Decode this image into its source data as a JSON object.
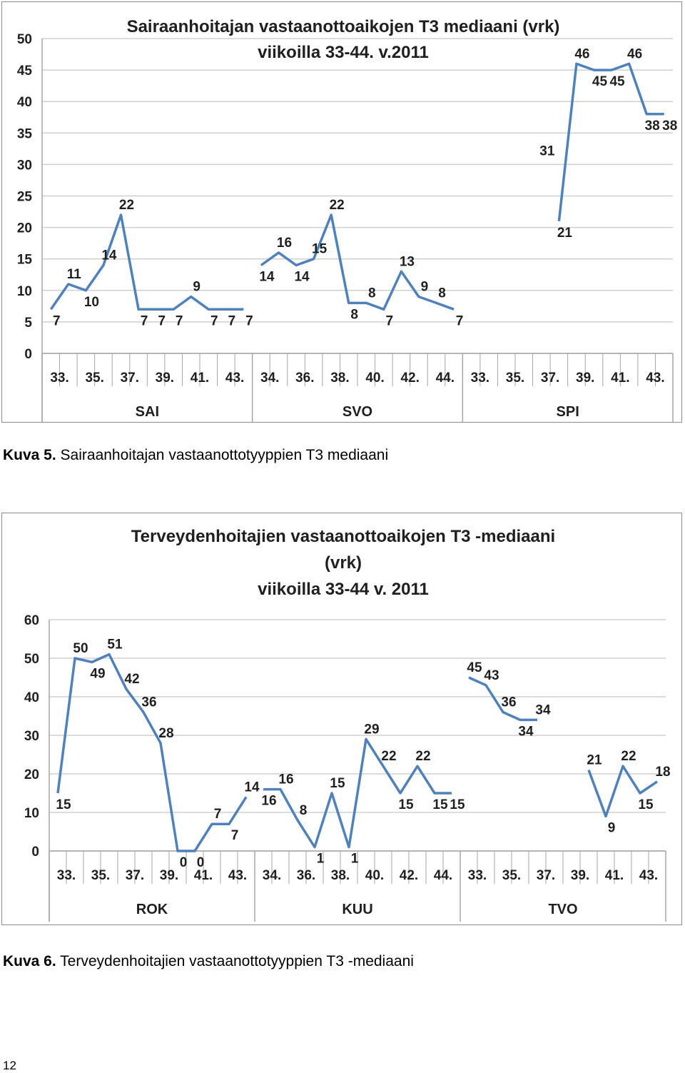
{
  "captions": [
    {
      "label": "Kuva 5.",
      "text": "Sairaanhoitajan  vastaanottotyyppien  T3 mediaani"
    },
    {
      "label": "Kuva 6.",
      "text": "Terveydenhoitajien vastaanottotyyppien T3 -mediaani"
    }
  ],
  "page_number": "12",
  "colors": {
    "line": "#4f81bd",
    "grid": "#d0d0d0",
    "axis": "#a6a6a6"
  },
  "chart_data": [
    {
      "type": "line",
      "title_lines": [
        "Sairaanhoitajan vastaanottoaikojen T3 mediaani  (vrk)",
        "viikoilla 33-44. v.2011"
      ],
      "ylim": [
        0,
        50
      ],
      "yticks": [
        0,
        5,
        10,
        15,
        20,
        25,
        30,
        35,
        40,
        45,
        50
      ],
      "grid": true,
      "groups": [
        {
          "name": "SAI",
          "ticks": [
            "33.",
            "35.",
            "37.",
            "39.",
            "41.",
            "43."
          ],
          "values": [
            7,
            11,
            10,
            14,
            22,
            7,
            7,
            7,
            9,
            7,
            7,
            7
          ]
        },
        {
          "name": "SVO",
          "ticks": [
            "34.",
            "36.",
            "38.",
            "40.",
            "42.",
            "44."
          ],
          "values": [
            14,
            16,
            14,
            15,
            22,
            8,
            8,
            7,
            13,
            9,
            8,
            7
          ]
        },
        {
          "name": "SPI",
          "ticks": [
            "33.",
            "35.",
            "37.",
            "39.",
            "41.",
            "43."
          ],
          "values": [
            21,
            46,
            45,
            45,
            46,
            38,
            38
          ],
          "start_index": 5,
          "extra_labels": [
            {
              "index": 4,
              "text": "31"
            }
          ]
        }
      ]
    },
    {
      "type": "line",
      "title_lines": [
        "Terveydenhoitajien vastaanottoaikojen T3 -mediaani",
        "(vrk)",
        "viikoilla 33-44 v. 2011"
      ],
      "ylim": [
        0,
        60
      ],
      "yticks": [
        0,
        10,
        20,
        30,
        40,
        50,
        60
      ],
      "grid": true,
      "groups": [
        {
          "name": "ROK",
          "ticks": [
            "33.",
            "35.",
            "37.",
            "39.",
            "41.",
            "43."
          ],
          "values": [
            15,
            50,
            49,
            51,
            42,
            36,
            28,
            0,
            0,
            7,
            7,
            14
          ]
        },
        {
          "name": "KUU",
          "ticks": [
            "34.",
            "36.",
            "38.",
            "40.",
            "42.",
            "44."
          ],
          "values": [
            16,
            16,
            8,
            1,
            15,
            1,
            29,
            22,
            15,
            22,
            15,
            15
          ]
        },
        {
          "name": "TVO",
          "ticks": [
            "33.",
            "35.",
            "37.",
            "39.",
            "41.",
            "43."
          ],
          "values": [
            45,
            43,
            36,
            34,
            34,
            21,
            9,
            22,
            15,
            18
          ],
          "segments": [
            [
              0,
              5
            ],
            [
              5,
              10
            ]
          ],
          "x_index": [
            0,
            1,
            2,
            3,
            4,
            7,
            8,
            9,
            10,
            11
          ]
        }
      ]
    }
  ]
}
